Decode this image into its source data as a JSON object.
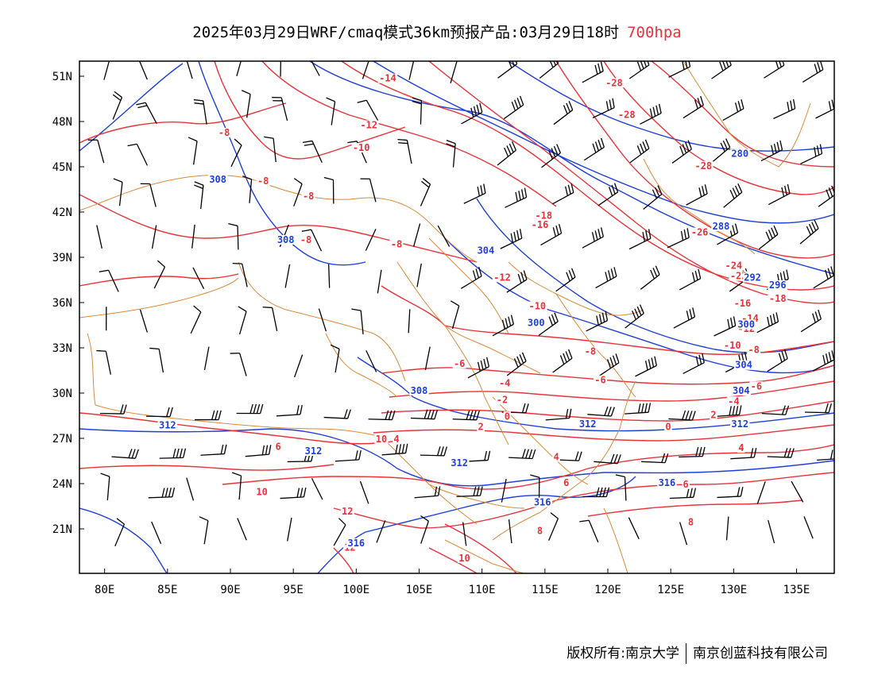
{
  "header": {
    "title": "2025年03月29日WRF/cmaq模式36km预报产品:03月29日18时",
    "level": "700hpa"
  },
  "axes": {
    "lat_labels": [
      "51N",
      "48N",
      "45N",
      "42N",
      "39N",
      "36N",
      "33N",
      "30N",
      "27N",
      "24N",
      "21N"
    ],
    "lon_labels": [
      "80E",
      "85E",
      "90E",
      "95E",
      "100E",
      "105E",
      "110E",
      "115E",
      "120E",
      "125E",
      "130E",
      "135E"
    ]
  },
  "colors": {
    "temperature": "#e8333a",
    "geopotential": "#1f3fd6",
    "border": "#d98a3a",
    "wind": "#000000"
  },
  "legend_icons": [
    "wind-barb-icon"
  ],
  "temperature_labels": [
    {
      "text": "-28",
      "lon": 120.5,
      "lat": 50.4
    },
    {
      "text": "-28",
      "lon": 121.5,
      "lat": 48.3
    },
    {
      "text": "-14",
      "lon": 102.5,
      "lat": 50.7
    },
    {
      "text": "-12",
      "lon": 101.0,
      "lat": 47.6
    },
    {
      "text": "-10",
      "lon": 100.4,
      "lat": 46.1
    },
    {
      "text": "-8",
      "lon": 89.5,
      "lat": 47.1
    },
    {
      "text": "-8",
      "lon": 92.6,
      "lat": 43.9
    },
    {
      "text": "-8",
      "lon": 96.2,
      "lat": 42.9
    },
    {
      "text": "-8",
      "lon": 96.0,
      "lat": 40.0
    },
    {
      "text": "-8",
      "lon": 103.2,
      "lat": 39.7
    },
    {
      "text": "-18",
      "lon": 114.9,
      "lat": 41.6
    },
    {
      "text": "-16",
      "lon": 114.6,
      "lat": 41.0
    },
    {
      "text": "-12",
      "lon": 111.6,
      "lat": 37.5
    },
    {
      "text": "-28",
      "lon": 127.6,
      "lat": 44.9
    },
    {
      "text": "-26",
      "lon": 127.3,
      "lat": 40.5
    },
    {
      "text": "-24",
      "lon": 130.0,
      "lat": 38.3
    },
    {
      "text": "-22",
      "lon": 130.4,
      "lat": 37.6
    },
    {
      "text": "-16",
      "lon": 130.7,
      "lat": 35.8
    },
    {
      "text": "-18",
      "lon": 133.5,
      "lat": 36.1
    },
    {
      "text": "-14",
      "lon": 131.3,
      "lat": 34.8
    },
    {
      "text": "-12",
      "lon": 131.0,
      "lat": 34.1
    },
    {
      "text": "-10",
      "lon": 129.9,
      "lat": 33.0
    },
    {
      "text": "-8",
      "lon": 131.6,
      "lat": 32.7
    },
    {
      "text": "-6",
      "lon": 131.8,
      "lat": 30.3
    },
    {
      "text": "-4",
      "lon": 130.0,
      "lat": 29.3
    },
    {
      "text": "-10",
      "lon": 114.4,
      "lat": 35.6
    },
    {
      "text": "-8",
      "lon": 118.6,
      "lat": 32.6
    },
    {
      "text": "-6",
      "lon": 108.2,
      "lat": 31.8
    },
    {
      "text": "-6",
      "lon": 119.4,
      "lat": 30.7
    },
    {
      "text": "-4",
      "lon": 111.8,
      "lat": 30.5
    },
    {
      "text": "-2",
      "lon": 111.6,
      "lat": 29.4
    },
    {
      "text": "0",
      "lon": 112.0,
      "lat": 28.3
    },
    {
      "text": "2",
      "lon": 109.9,
      "lat": 27.6
    },
    {
      "text": "2",
      "lon": 128.4,
      "lat": 28.4
    },
    {
      "text": "0",
      "lon": 124.8,
      "lat": 27.6
    },
    {
      "text": "4",
      "lon": 103.2,
      "lat": 26.8
    },
    {
      "text": "4",
      "lon": 115.9,
      "lat": 25.6
    },
    {
      "text": "4",
      "lon": 130.6,
      "lat": 26.2
    },
    {
      "text": "6",
      "lon": 93.8,
      "lat": 26.3
    },
    {
      "text": "6",
      "lon": 116.7,
      "lat": 23.9
    },
    {
      "text": "6",
      "lon": 126.2,
      "lat": 23.8
    },
    {
      "text": "8",
      "lon": 126.6,
      "lat": 21.3
    },
    {
      "text": "8",
      "lon": 114.6,
      "lat": 20.7
    },
    {
      "text": "10",
      "lon": 92.5,
      "lat": 23.3
    },
    {
      "text": "10",
      "lon": 102.0,
      "lat": 26.8
    },
    {
      "text": "10",
      "lon": 108.6,
      "lat": 18.9
    },
    {
      "text": "12",
      "lon": 99.3,
      "lat": 22.0
    },
    {
      "text": "12",
      "lon": 99.5,
      "lat": 19.6
    }
  ],
  "geopotential_labels": [
    {
      "text": "280",
      "lon": 130.5,
      "lat": 45.7
    },
    {
      "text": "288",
      "lon": 129.0,
      "lat": 40.9
    },
    {
      "text": "292",
      "lon": 131.5,
      "lat": 37.5
    },
    {
      "text": "296",
      "lon": 133.5,
      "lat": 37.0
    },
    {
      "text": "300",
      "lon": 131.0,
      "lat": 34.4
    },
    {
      "text": "304",
      "lon": 110.3,
      "lat": 39.3
    },
    {
      "text": "304",
      "lon": 130.8,
      "lat": 31.7
    },
    {
      "text": "304",
      "lon": 130.6,
      "lat": 30.0
    },
    {
      "text": "308",
      "lon": 89.0,
      "lat": 44.0
    },
    {
      "text": "308",
      "lon": 94.4,
      "lat": 40.0
    },
    {
      "text": "308",
      "lon": 105.0,
      "lat": 30.0
    },
    {
      "text": "300",
      "lon": 114.3,
      "lat": 34.5
    },
    {
      "text": "312",
      "lon": 85.0,
      "lat": 27.7
    },
    {
      "text": "312",
      "lon": 96.6,
      "lat": 26.0
    },
    {
      "text": "312",
      "lon": 108.2,
      "lat": 25.2
    },
    {
      "text": "312",
      "lon": 118.4,
      "lat": 27.8
    },
    {
      "text": "312",
      "lon": 130.5,
      "lat": 27.8
    },
    {
      "text": "316",
      "lon": 124.7,
      "lat": 23.9
    },
    {
      "text": "316",
      "lon": 114.8,
      "lat": 22.6
    },
    {
      "text": "316",
      "lon": 100.0,
      "lat": 19.9
    }
  ],
  "footer": {
    "left": "版权所有:南京大学",
    "right": "南京创蓝科技有限公司"
  }
}
